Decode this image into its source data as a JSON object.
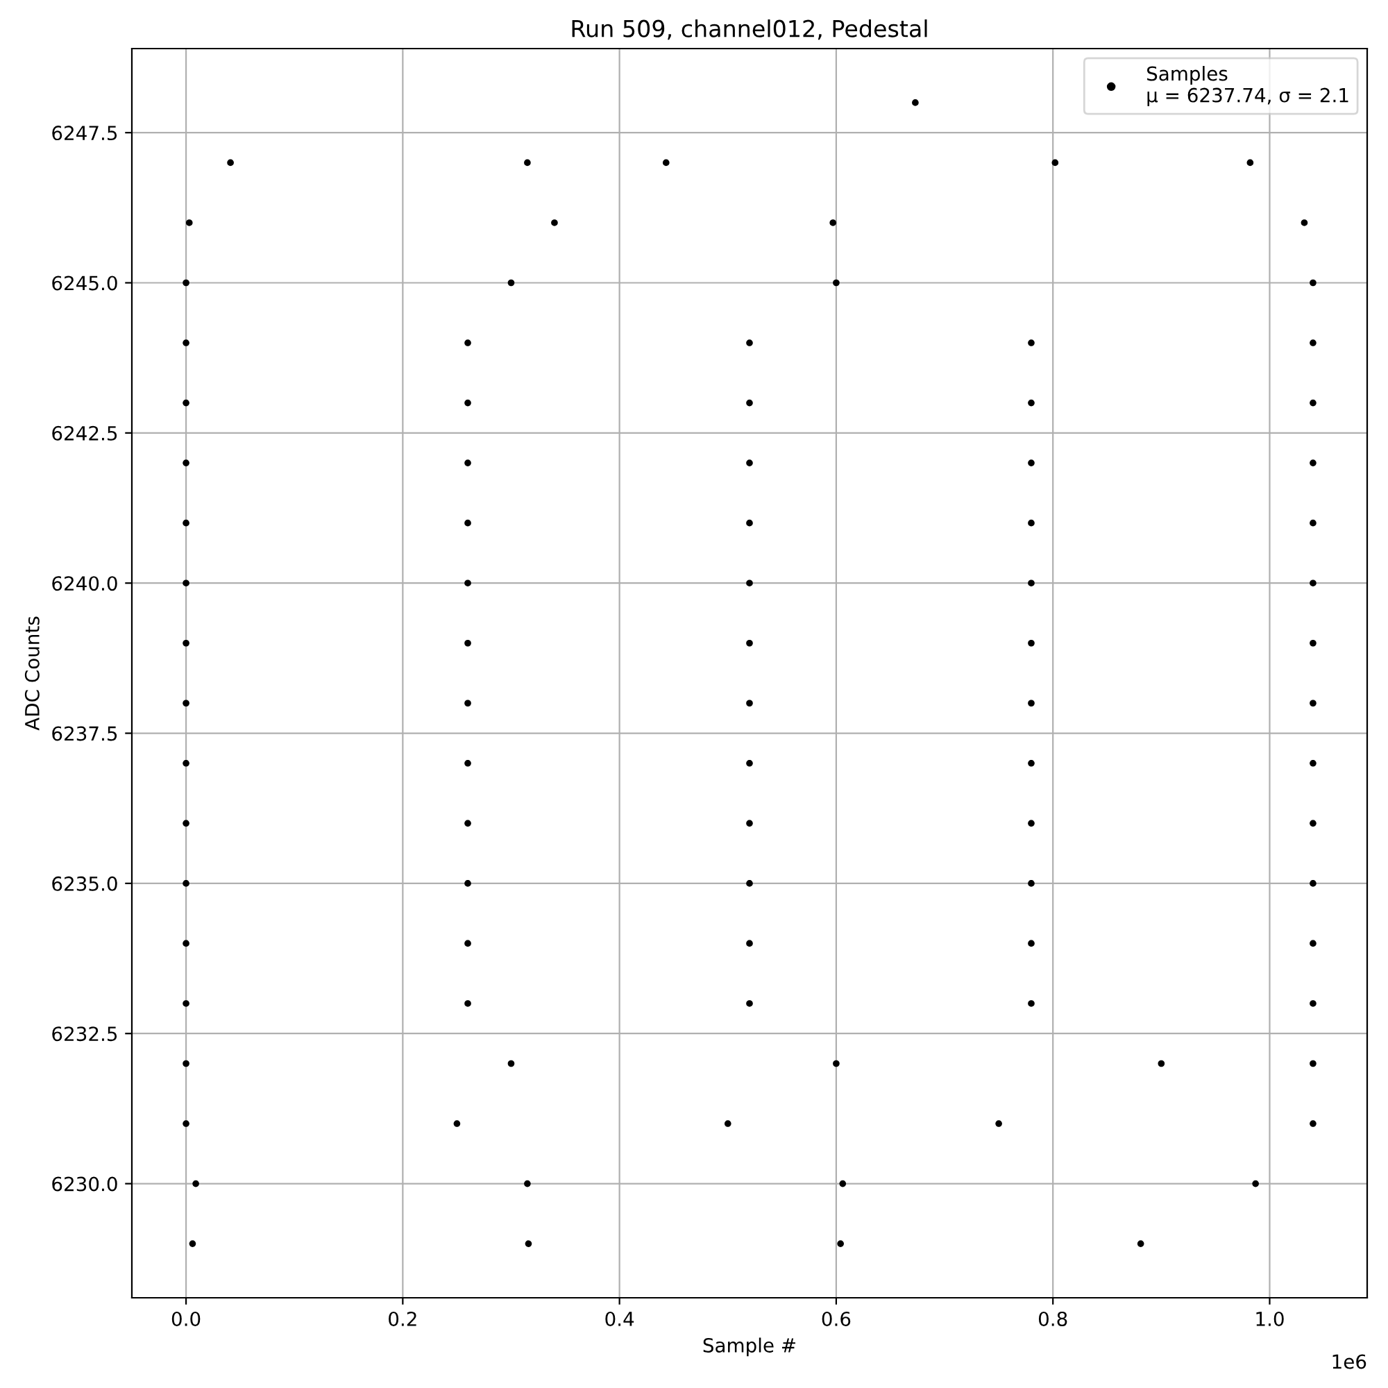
{
  "chart_data": {
    "type": "scatter",
    "title": "Run 509, channel012, Pedestal",
    "xlabel": "Sample #",
    "ylabel": "ADC Counts",
    "xlim": [
      -0.05,
      1.09
    ],
    "ylim": [
      6228.1,
      6248.9
    ],
    "xticks": [
      {
        "value": 0,
        "label": "0.0"
      },
      0.2,
      0.4,
      0.6,
      0.8,
      {
        "value": 1,
        "label": "1.0"
      }
    ],
    "yticks": [
      {
        "value": 6230,
        "label": "6230.0"
      },
      6232.5,
      {
        "value": 6235,
        "label": "6235.0"
      },
      6237.5,
      {
        "value": 6240,
        "label": "6240.0"
      },
      6242.5,
      {
        "value": 6245,
        "label": "6245.0"
      },
      6247.5
    ],
    "annotations": [
      "1e6"
    ],
    "grid": true,
    "legend": "top right",
    "marker": "circle",
    "series": [
      {
        "name": "Samples\nμ = 6237.74, σ = 2.1",
        "color": "#000000",
        "x": [
          0,
          0.26,
          0.52,
          0.78,
          1.04,
          0,
          0.26,
          0.52,
          0.78,
          1.04,
          0,
          0.26,
          0.52,
          0.78,
          1.04,
          0,
          0.26,
          0.52,
          0.78,
          1.04,
          0,
          0.26,
          0.52,
          0.78,
          1.04,
          0,
          0.26,
          0.52,
          0.78,
          1.04,
          0,
          0.26,
          0.52,
          0.78,
          1.04,
          0,
          0.26,
          0.52,
          0.78,
          1.04,
          0,
          0.26,
          0.52,
          0.78,
          1.04,
          0,
          0.26,
          0.52,
          0.78,
          1.04,
          0,
          0.26,
          0.52,
          0.78,
          1.04,
          0,
          0.26,
          0.52,
          0.78,
          1.04,
          0,
          0.3,
          0.6,
          0.9,
          1.04,
          0,
          0.25,
          0.5,
          0.75,
          1.04,
          0,
          0.3,
          0.6,
          1.04,
          0.009,
          0.315,
          0.606,
          0.987,
          0.003,
          0.34,
          0.597,
          1.032,
          0.006,
          0.316,
          0.604,
          0.881,
          0.041,
          0.315,
          0.443,
          0.802,
          0.982,
          0.673
        ],
        "values": [
          6233,
          6233,
          6233,
          6233,
          6233,
          6234,
          6234,
          6234,
          6234,
          6234,
          6235,
          6235,
          6235,
          6235,
          6235,
          6236,
          6236,
          6236,
          6236,
          6236,
          6237,
          6237,
          6237,
          6237,
          6237,
          6238,
          6238,
          6238,
          6238,
          6238,
          6239,
          6239,
          6239,
          6239,
          6239,
          6240,
          6240,
          6240,
          6240,
          6240,
          6241,
          6241,
          6241,
          6241,
          6241,
          6242,
          6242,
          6242,
          6242,
          6242,
          6243,
          6243,
          6243,
          6243,
          6243,
          6244,
          6244,
          6244,
          6244,
          6244,
          6232,
          6232,
          6232,
          6232,
          6232,
          6231,
          6231,
          6231,
          6231,
          6231,
          6245,
          6245,
          6245,
          6245,
          6230,
          6230,
          6230,
          6230,
          6246,
          6246,
          6246,
          6246,
          6229,
          6229,
          6229,
          6229,
          6247,
          6247,
          6247,
          6247,
          6247,
          6248
        ]
      }
    ]
  }
}
